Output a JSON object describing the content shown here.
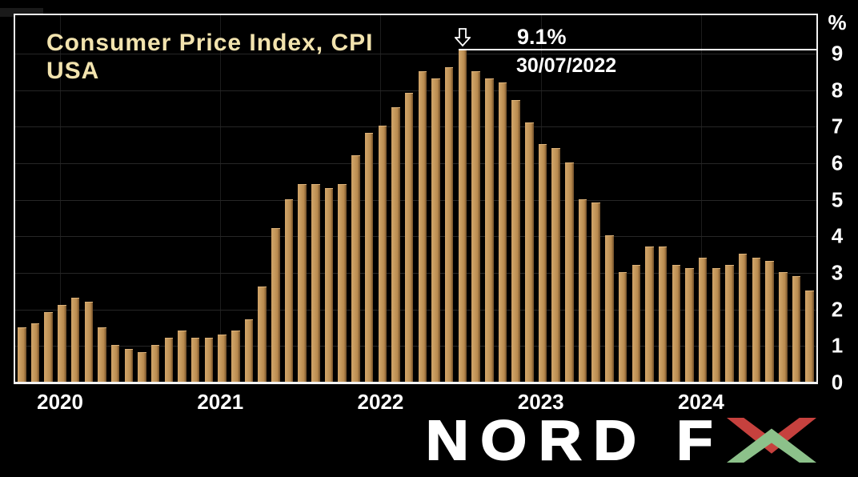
{
  "title": {
    "line1": "Consumer Price Index, CPI",
    "line2": "USA"
  },
  "annotation": {
    "value_label": "9.1%",
    "date_label": "30/07/2022",
    "arrow_icon": "down-arrow",
    "level": 9.1
  },
  "axis": {
    "unit_label": "%"
  },
  "logo": {
    "text": "NORD F",
    "x_letter": "X"
  },
  "colors": {
    "background": "#000000",
    "bar": "#c69a5e",
    "bar_shadow": "#6f4e29",
    "title_text": "#f2e3ae",
    "axis_text": "#ffffff",
    "border": "#f2f2f2",
    "logo_red": "#c6413e",
    "logo_green": "#8cc18a"
  },
  "chart_data": {
    "type": "bar",
    "title": "Consumer Price Index, CPI USA",
    "xlabel": "",
    "ylabel": "%",
    "ylim": [
      0,
      10
    ],
    "grid": true,
    "legend": "none",
    "x_months": [
      "2019-09",
      "2019-10",
      "2019-11",
      "2019-12",
      "2020-01",
      "2020-02",
      "2020-03",
      "2020-04",
      "2020-05",
      "2020-06",
      "2020-07",
      "2020-08",
      "2020-09",
      "2020-10",
      "2020-11",
      "2020-12",
      "2021-01",
      "2021-02",
      "2021-03",
      "2021-04",
      "2021-05",
      "2021-06",
      "2021-07",
      "2021-08",
      "2021-09",
      "2021-10",
      "2021-11",
      "2021-12",
      "2022-01",
      "2022-02",
      "2022-03",
      "2022-04",
      "2022-05",
      "2022-06",
      "2022-07",
      "2022-08",
      "2022-09",
      "2022-10",
      "2022-11",
      "2022-12",
      "2023-01",
      "2023-02",
      "2023-03",
      "2023-04",
      "2023-05",
      "2023-06",
      "2023-07",
      "2023-08",
      "2023-09",
      "2023-10",
      "2023-11",
      "2023-12",
      "2024-01",
      "2024-02",
      "2024-03",
      "2024-04",
      "2024-05",
      "2024-06",
      "2024-07",
      "2024-08"
    ],
    "values": [
      1.5,
      1.6,
      1.9,
      2.1,
      2.3,
      2.2,
      1.5,
      1.0,
      0.9,
      0.8,
      1.0,
      1.2,
      1.4,
      1.2,
      1.2,
      1.3,
      1.4,
      1.7,
      2.6,
      4.2,
      5.0,
      5.4,
      5.4,
      5.3,
      5.4,
      6.2,
      6.8,
      7.0,
      7.5,
      7.9,
      8.5,
      8.3,
      8.6,
      9.1,
      8.5,
      8.3,
      8.2,
      7.7,
      7.1,
      6.5,
      6.4,
      6.0,
      5.0,
      4.9,
      4.0,
      3.0,
      3.2,
      3.7,
      3.7,
      3.2,
      3.1,
      3.4,
      3.1,
      3.2,
      3.5,
      3.4,
      3.3,
      3.0,
      2.9,
      2.5
    ],
    "y_tick_labels": [
      9,
      8,
      7,
      6,
      5,
      4,
      3,
      2,
      1,
      0
    ],
    "x_tick_labels": [
      "2020",
      "2021",
      "2022",
      "2023",
      "2024"
    ],
    "year_start_indices": {
      "2020": 4,
      "2021": 16,
      "2022": 28,
      "2023": 40,
      "2024": 52
    },
    "peak_index": 33,
    "annotations": [
      {
        "text": "9.1%",
        "date_text": "30/07/2022",
        "target_month": "2022-06",
        "value": 9.1
      }
    ]
  }
}
